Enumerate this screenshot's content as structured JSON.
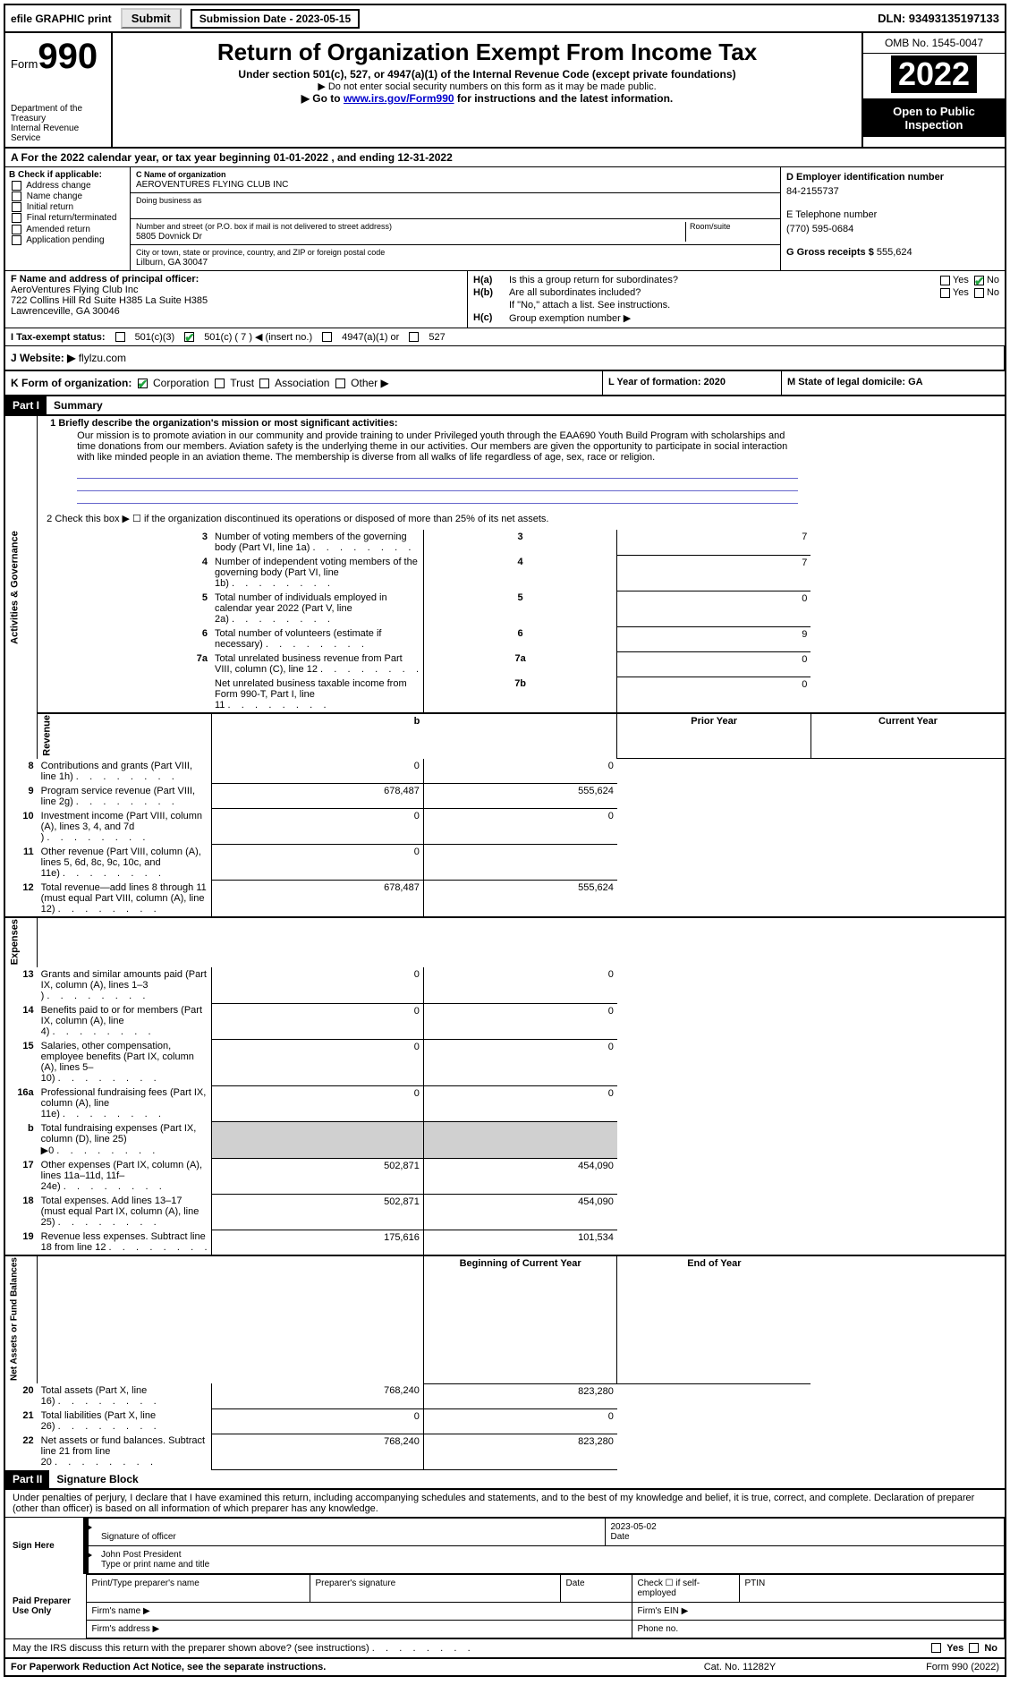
{
  "top": {
    "efile": "efile GRAPHIC print",
    "submit_lbl": "Submit",
    "subdate": "Submission Date - 2023-05-15",
    "dln": "DLN: 93493135197133"
  },
  "hdr": {
    "form": "Form",
    "num": "990",
    "title": "Return of Organization Exempt From Income Tax",
    "sub1": "Under section 501(c), 527, or 4947(a)(1) of the Internal Revenue Code (except private foundations)",
    "sub2": "▶ Do not enter social security numbers on this form as it may be made public.",
    "sub3": "▶ Go to ",
    "link": "www.irs.gov/Form990",
    "sub3b": " for instructions and the latest information.",
    "dept": "Department of the Treasury",
    "irs": "Internal Revenue Service",
    "omb": "OMB No. 1545-0047",
    "year": "2022",
    "open": "Open to Public Inspection"
  },
  "A": {
    "txt": "A For the 2022 calendar year, or tax year beginning 01-01-2022    , and ending 12-31-2022"
  },
  "B": {
    "lbl": "B Check if applicable:",
    "opts": [
      "Address change",
      "Name change",
      "Initial return",
      "Final return/terminated",
      "Amended return",
      "Application pending"
    ]
  },
  "C": {
    "name_lbl": "C Name of organization",
    "name": "AEROVENTURES FLYING CLUB INC",
    "dba_lbl": "Doing business as",
    "dba": "",
    "addr_lbl": "Number and street (or P.O. box if mail is not delivered to street address)",
    "room_lbl": "Room/suite",
    "addr": "5805 Dovnick Dr",
    "city_lbl": "City or town, state or province, country, and ZIP or foreign postal code",
    "city": "Lilburn, GA  30047"
  },
  "D": {
    "lbl": "D Employer identification number",
    "val": "84-2155737"
  },
  "E": {
    "lbl": "E Telephone number",
    "val": "(770) 595-0684"
  },
  "G": {
    "lbl": "G Gross receipts $",
    "val": "555,624"
  },
  "F": {
    "lbl": "F Name and address of principal officer:",
    "l1": "AeroVentures Flying Club Inc",
    "l2": "722 Collins Hill Rd Suite H385 La Suite H385",
    "l3": "Lawrenceville, GA  30046"
  },
  "H": {
    "a_lbl": "Is this a group return for subordinates?",
    "a_yes": "Yes",
    "a_no": "No",
    "b_lbl": "Are all subordinates included?",
    "b_note": "If \"No,\" attach a list. See instructions.",
    "c_lbl": "Group exemption number ▶"
  },
  "I": {
    "lbl": "I    Tax-exempt status:",
    "o1": "501(c)(3)",
    "o2": "501(c) ( 7 ) ◀ (insert no.)",
    "o3": "4947(a)(1) or",
    "o4": "527"
  },
  "J": {
    "lbl": "J   Website: ▶",
    "val": "flylzu.com"
  },
  "K": {
    "lbl": "K Form of organization:",
    "opts": [
      "Corporation",
      "Trust",
      "Association",
      "Other ▶"
    ]
  },
  "L": {
    "lbl": "L Year of formation: 2020"
  },
  "M": {
    "lbl": "M State of legal domicile: GA"
  },
  "part1": {
    "hdr": "Part I",
    "title": "Summary"
  },
  "mission": {
    "lbl": "1   Briefly describe the organization's mission or most significant activities:",
    "txt": "Our mission is to promote aviation in our community and provide training to under Privileged youth through the EAA690 Youth Build Program with scholarships and time donations from our members. Aviation safety is the underlying theme in our activities. Our members are given the opportunity to participate in social interaction with like minded people in an aviation theme. The membership is diverse from all walks of life regardless of age, sex, race or religion."
  },
  "gov": {
    "vlabel": "Activities & Governance",
    "l2": "2   Check this box ▶ ☐ if the organization discontinued its operations or disposed of more than 25% of its net assets.",
    "rows": [
      {
        "n": "3",
        "t": "Number of voting members of the governing body (Part VI, line 1a)",
        "c": "3",
        "v": "7"
      },
      {
        "n": "4",
        "t": "Number of independent voting members of the governing body (Part VI, line 1b)",
        "c": "4",
        "v": "7"
      },
      {
        "n": "5",
        "t": "Total number of individuals employed in calendar year 2022 (Part V, line 2a)",
        "c": "5",
        "v": "0"
      },
      {
        "n": "6",
        "t": "Total number of volunteers (estimate if necessary)",
        "c": "6",
        "v": "9"
      },
      {
        "n": "7a",
        "t": "Total unrelated business revenue from Part VIII, column (C), line 12",
        "c": "7a",
        "v": "0"
      },
      {
        "n": "",
        "t": "Net unrelated business taxable income from Form 990-T, Part I, line 11",
        "c": "7b",
        "v": "0"
      }
    ]
  },
  "rev": {
    "vlabel": "Revenue",
    "hdr_prior": "Prior Year",
    "hdr_curr": "Current Year",
    "rows": [
      {
        "n": "8",
        "t": "Contributions and grants (Part VIII, line 1h)",
        "p": "0",
        "c": "0"
      },
      {
        "n": "9",
        "t": "Program service revenue (Part VIII, line 2g)",
        "p": "678,487",
        "c": "555,624"
      },
      {
        "n": "10",
        "t": "Investment income (Part VIII, column (A), lines 3, 4, and 7d )",
        "p": "0",
        "c": "0"
      },
      {
        "n": "11",
        "t": "Other revenue (Part VIII, column (A), lines 5, 6d, 8c, 9c, 10c, and 11e)",
        "p": "0",
        "c": ""
      },
      {
        "n": "12",
        "t": "Total revenue—add lines 8 through 11 (must equal Part VIII, column (A), line 12)",
        "p": "678,487",
        "c": "555,624"
      }
    ]
  },
  "exp": {
    "vlabel": "Expenses",
    "rows": [
      {
        "n": "13",
        "t": "Grants and similar amounts paid (Part IX, column (A), lines 1–3 )",
        "p": "0",
        "c": "0"
      },
      {
        "n": "14",
        "t": "Benefits paid to or for members (Part IX, column (A), line 4)",
        "p": "0",
        "c": "0"
      },
      {
        "n": "15",
        "t": "Salaries, other compensation, employee benefits (Part IX, column (A), lines 5–10)",
        "p": "0",
        "c": "0"
      },
      {
        "n": "16a",
        "t": "Professional fundraising fees (Part IX, column (A), line 11e)",
        "p": "0",
        "c": "0"
      },
      {
        "n": "b",
        "t": "Total fundraising expenses (Part IX, column (D), line 25) ▶0",
        "p": "",
        "c": "",
        "shade": true,
        "sm": true
      },
      {
        "n": "17",
        "t": "Other expenses (Part IX, column (A), lines 11a–11d, 11f–24e)",
        "p": "502,871",
        "c": "454,090"
      },
      {
        "n": "18",
        "t": "Total expenses. Add lines 13–17 (must equal Part IX, column (A), line 25)",
        "p": "502,871",
        "c": "454,090"
      },
      {
        "n": "19",
        "t": "Revenue less expenses. Subtract line 18 from line 12",
        "p": "175,616",
        "c": "101,534"
      }
    ]
  },
  "net": {
    "vlabel": "Net Assets or Fund Balances",
    "hdr_prior": "Beginning of Current Year",
    "hdr_curr": "End of Year",
    "rows": [
      {
        "n": "20",
        "t": "Total assets (Part X, line 16)",
        "p": "768,240",
        "c": "823,280"
      },
      {
        "n": "21",
        "t": "Total liabilities (Part X, line 26)",
        "p": "0",
        "c": "0"
      },
      {
        "n": "22",
        "t": "Net assets or fund balances. Subtract line 21 from line 20",
        "p": "768,240",
        "c": "823,280"
      }
    ]
  },
  "part2": {
    "hdr": "Part II",
    "title": "Signature Block"
  },
  "sig": {
    "decl": "Under penalties of perjury, I declare that I have examined this return, including accompanying schedules and statements, and to the best of my knowledge and belief, it is true, correct, and complete. Declaration of preparer (other than officer) is based on all information of which preparer has any knowledge.",
    "sign_here": "Sign Here",
    "sig_officer": "Signature of officer",
    "date_lbl": "Date",
    "date": "2023-05-02",
    "name": "John Post President",
    "name_lbl": "Type or print name and title",
    "paid": "Paid Preparer Use Only",
    "prep_name": "Print/Type preparer's name",
    "prep_sig": "Preparer's signature",
    "check_se": "Check ☐ if self-employed",
    "ptin": "PTIN",
    "firm_name": "Firm's name  ▶",
    "firm_ein": "Firm's EIN ▶",
    "firm_addr": "Firm's address ▶",
    "phone": "Phone no."
  },
  "discuss": {
    "txt": "May the IRS discuss this return with the preparer shown above? (see instructions)",
    "yes": "Yes",
    "no": "No"
  },
  "footer": {
    "l": "For Paperwork Reduction Act Notice, see the separate instructions.",
    "m": "Cat. No. 11282Y",
    "r": "Form 990 (2022)"
  }
}
